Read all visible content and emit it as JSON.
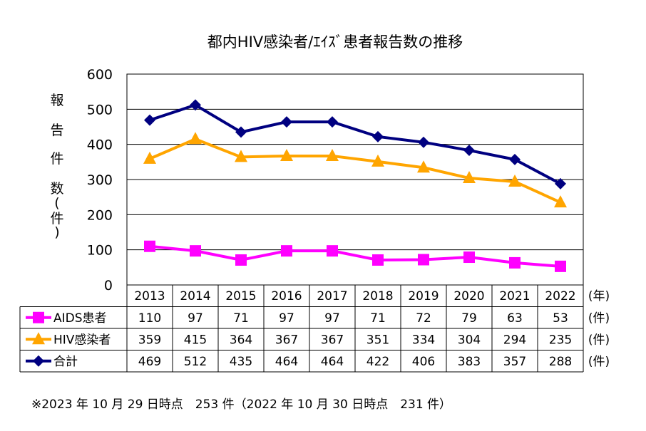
{
  "chart_data": {
    "type": "line",
    "title": "都内HIV感染者/ｴｲｽﾞ患者報告数の推移",
    "ylabel": "報告件数（件）",
    "ylabel_chars": [
      "報",
      "告",
      "件",
      "数",
      "(",
      "件",
      ")"
    ],
    "ylim": [
      0,
      600
    ],
    "yticks": [
      0,
      100,
      200,
      300,
      400,
      500,
      600
    ],
    "categories": [
      "2013",
      "2014",
      "2015",
      "2016",
      "2017",
      "2018",
      "2019",
      "2020",
      "2021",
      "2022"
    ],
    "series": [
      {
        "name": "AIDS患者",
        "values": [
          110,
          97,
          71,
          97,
          97,
          71,
          72,
          79,
          63,
          53
        ],
        "color": "#FF00FF",
        "marker": "square"
      },
      {
        "name": "HIV感染者",
        "values": [
          359,
          415,
          364,
          367,
          367,
          351,
          334,
          304,
          294,
          235
        ],
        "color": "#FFA500",
        "marker": "triangle"
      },
      {
        "name": "合計",
        "values": [
          469,
          512,
          435,
          464,
          464,
          422,
          406,
          383,
          357,
          288
        ],
        "color": "#000080",
        "marker": "diamond"
      }
    ],
    "table_units": {
      "header": "(年)",
      "row": "(件)"
    },
    "grid": true
  },
  "footnote": "※2023 年 10 月 29 日時点　253 件（2022 年 10 月 30 日時点　231 件）"
}
